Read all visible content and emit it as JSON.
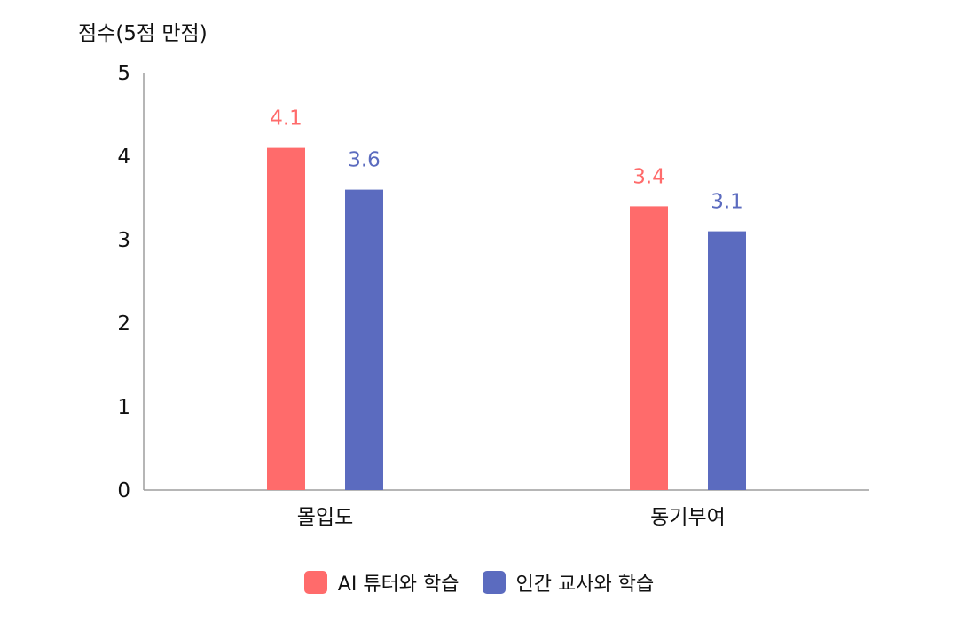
{
  "chart_data": {
    "type": "bar",
    "title": "",
    "xlabel": "",
    "ylabel": "점수(5점 만점)",
    "categories": [
      "몰입도",
      "동기부여"
    ],
    "series": [
      {
        "name": "AI 튜터와 학습",
        "values": [
          4.1,
          3.4
        ],
        "color": "#ff6b6b"
      },
      {
        "name": "인간 교사와 학습",
        "values": [
          3.6,
          3.1
        ],
        "color": "#5b6bbf"
      }
    ],
    "ylim": [
      0,
      5
    ],
    "yticks": [
      "0",
      "1",
      "2",
      "3",
      "4",
      "5"
    ],
    "data_labels": [
      [
        "4.1",
        "3.4"
      ],
      [
        "3.6",
        "3.1"
      ]
    ],
    "grid": false,
    "legend_position": "bottom-center"
  }
}
